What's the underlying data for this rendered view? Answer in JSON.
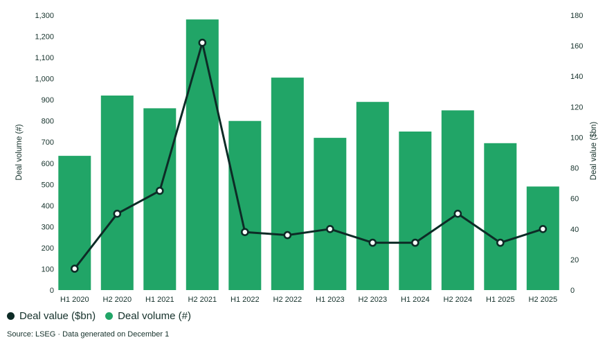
{
  "colors": {
    "bar_green": "#21a567",
    "line_dark": "#0d2b26",
    "text_dark": "#14302a"
  },
  "legend": [
    {
      "label": "Deal value ($bn)",
      "color": "#0d2b26"
    },
    {
      "label": "Deal volume (#)",
      "color": "#21a567"
    }
  ],
  "source": "Source: LSEG · Data generated on December 1",
  "chart_data": {
    "type": "bar",
    "subtype": "bar-line-combo",
    "categories": [
      "H1 2020",
      "H2 2020",
      "H1 2021",
      "H2 2021",
      "H1 2022",
      "H2 2022",
      "H1 2023",
      "H2 2023",
      "H1 2024",
      "H2 2024",
      "H1 2025",
      "H2 2025"
    ],
    "series": [
      {
        "name": "Deal volume (#)",
        "type": "bar",
        "axis": "left",
        "values": [
          635,
          920,
          860,
          1280,
          800,
          1005,
          720,
          890,
          750,
          850,
          695,
          490
        ]
      },
      {
        "name": "Deal value ($bn)",
        "type": "line",
        "axis": "right",
        "values": [
          14,
          50,
          65,
          162,
          38,
          36,
          40,
          31,
          31,
          50,
          31,
          40
        ]
      }
    ],
    "left_axis": {
      "label": "Deal volume (#)",
      "min": 0,
      "max": 1300,
      "step": 100
    },
    "right_axis": {
      "label": "Deal value ($bn)",
      "min": 0,
      "max": 180,
      "step": 20
    },
    "grid": false,
    "legend_position": "bottom-left"
  }
}
